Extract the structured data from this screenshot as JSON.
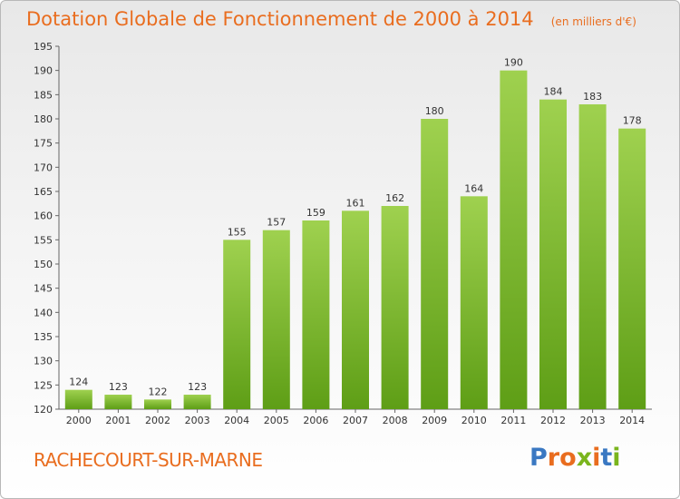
{
  "header": {
    "title": "Dotation Globale de Fonctionnement de 2000 à 2014",
    "subtitle": "(en milliers d'€)"
  },
  "footer": {
    "location": "RACHECOURT-SUR-MARNE",
    "brand": "Proxiti"
  },
  "colors": {
    "title": "#e96d1f",
    "bar_top": "#9fd14f",
    "bar_bottom": "#5e9e16",
    "brand_letters": [
      "#3a78c2",
      "#e96d1f",
      "#e96d1f",
      "#7ab51d",
      "#e96d1f",
      "#3a78c2",
      "#7ab51d"
    ]
  },
  "chart_data": {
    "type": "bar",
    "title": "Dotation Globale de Fonctionnement de 2000 à 2014",
    "subtitle": "(en milliers d'€)",
    "categories": [
      "2000",
      "2001",
      "2002",
      "2003",
      "2004",
      "2005",
      "2006",
      "2007",
      "2008",
      "2009",
      "2010",
      "2011",
      "2012",
      "2013",
      "2014"
    ],
    "values": [
      124,
      123,
      122,
      123,
      155,
      157,
      159,
      161,
      162,
      180,
      164,
      190,
      184,
      183,
      178
    ],
    "ylim": [
      120,
      195
    ],
    "yticks": [
      120,
      125,
      130,
      135,
      140,
      145,
      150,
      155,
      160,
      165,
      170,
      175,
      180,
      185,
      190,
      195
    ],
    "grid": false,
    "legend": "none"
  }
}
